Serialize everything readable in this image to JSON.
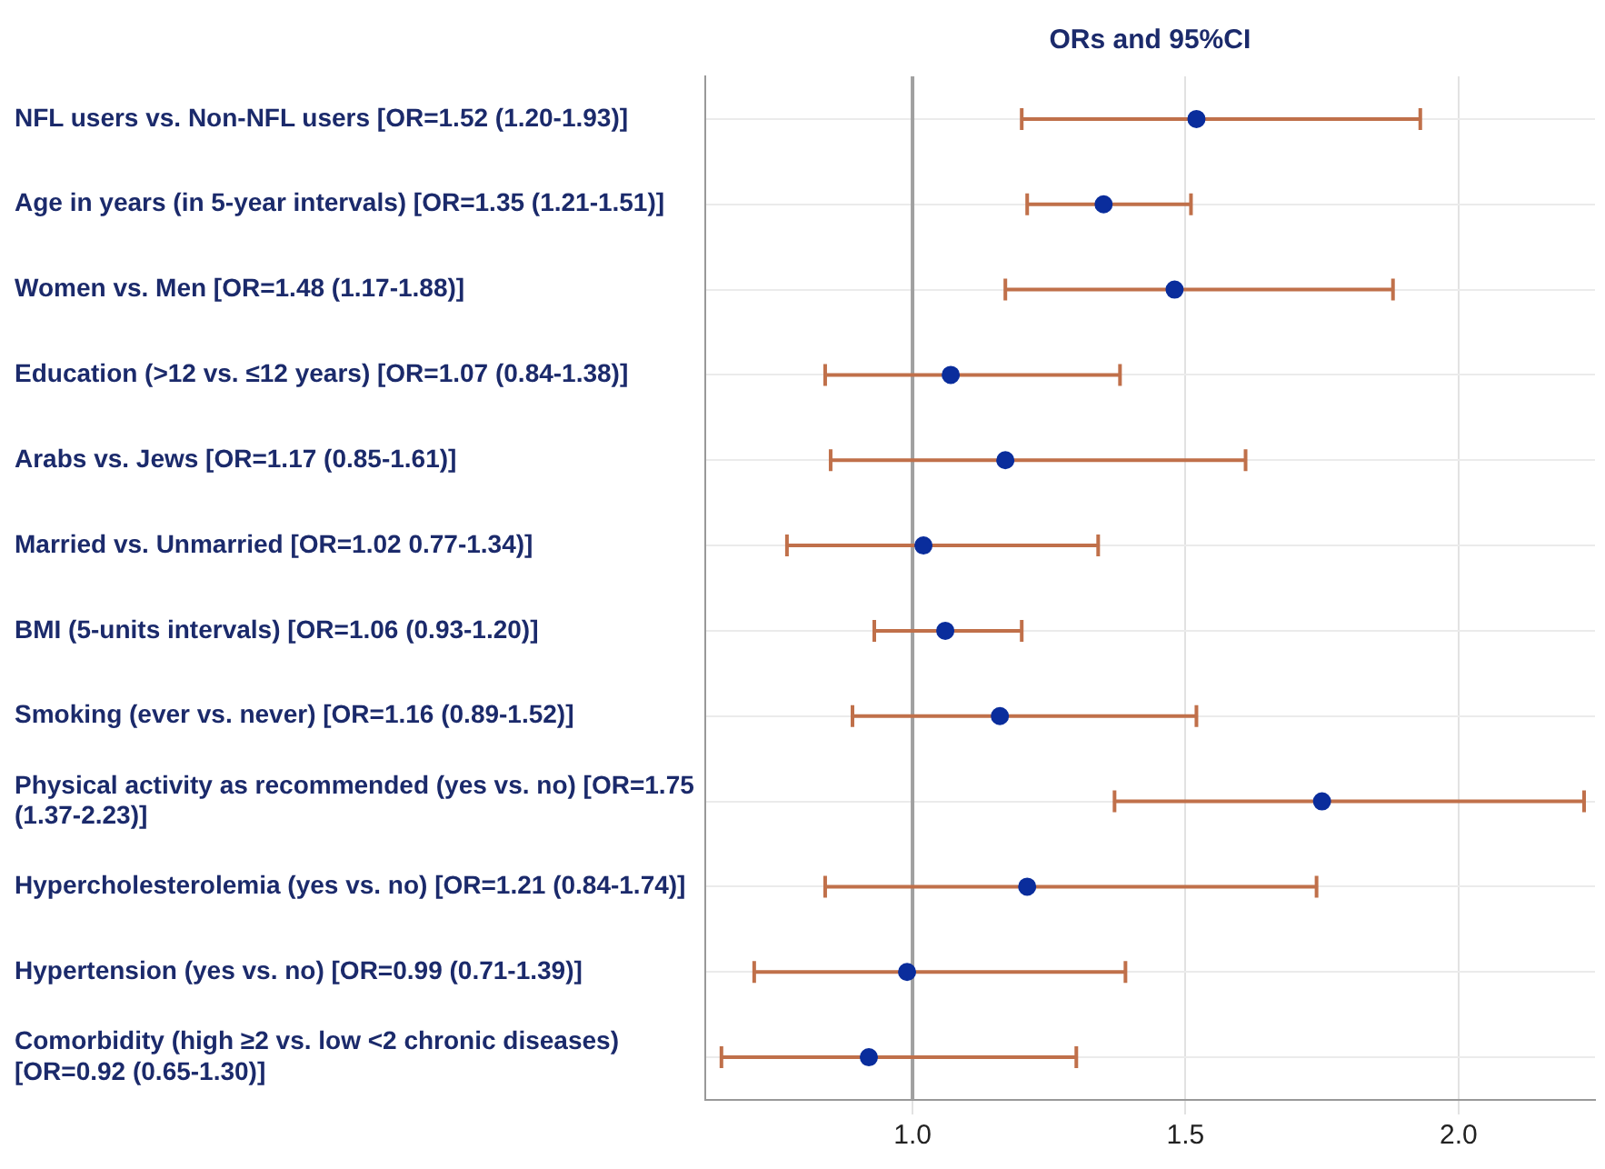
{
  "chart_data": {
    "type": "scatter",
    "title": "ORs and 95%CI",
    "orientation": "horizontal",
    "categories": [
      "NFL users vs. Non-NFL users [OR=1.52 (1.20-1.93)]",
      "Age in years (in 5-year intervals) [OR=1.35 (1.21-1.51)]",
      "Women vs. Men [OR=1.48 (1.17-1.88)]",
      "Education (>12 vs. ≤12 years) [OR=1.07 (0.84-1.38)]",
      "Arabs vs. Jews [OR=1.17 (0.85-1.61)]",
      "Married vs. Unmarried [OR=1.02 0.77-1.34)]",
      "BMI (5-units intervals) [OR=1.06 (0.93-1.20)]",
      "Smoking (ever vs. never) [OR=1.16 (0.89-1.52)]",
      "Physical activity as recommended (yes vs. no) [OR=1.75 (1.37-2.23)]",
      "Hypercholesterolemia (yes vs. no) [OR=1.21 (0.84-1.74)]",
      "Hypertension (yes vs. no) [OR=0.99 (0.71-1.39)]",
      "Comorbidity (high ≥2 vs. low <2 chronic diseases) [OR=0.92 (0.65-1.30)]"
    ],
    "series": [
      {
        "color": "#0a2d9c",
        "values": [
          1.52,
          1.35,
          1.48,
          1.07,
          1.17,
          1.02,
          1.06,
          1.16,
          1.75,
          1.21,
          0.99,
          0.92
        ],
        "errors": [
          [
            1.2,
            1.93
          ],
          [
            1.21,
            1.51
          ],
          [
            1.17,
            1.88
          ],
          [
            0.84,
            1.38
          ],
          [
            0.85,
            1.61
          ],
          [
            0.77,
            1.34
          ],
          [
            0.93,
            1.2
          ],
          [
            0.89,
            1.52
          ],
          [
            1.37,
            2.23
          ],
          [
            0.84,
            1.74
          ],
          [
            0.71,
            1.39
          ],
          [
            0.65,
            1.3
          ]
        ]
      }
    ],
    "xlim": [
      0.62,
      2.25
    ],
    "xticks": [
      {
        "value": 1,
        "label": "1.0"
      },
      {
        "value": 1.5,
        "label": "1.5"
      },
      {
        "value": 2,
        "label": "2.0"
      }
    ],
    "ref_lines": [
      {
        "axis": "x",
        "value": 1,
        "color": "#a0a0a0"
      }
    ],
    "grid": true,
    "marker": "circle",
    "legend": false
  }
}
